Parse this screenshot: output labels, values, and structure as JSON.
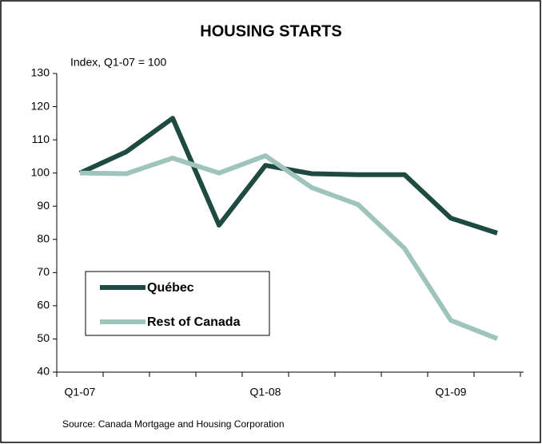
{
  "chart_data": {
    "type": "line",
    "title": "HOUSING STARTS",
    "y_label": "Index, Q1-07 = 100",
    "source": "Source: Canada Mortgage and Housing Corporation",
    "categories": [
      "Q1-07",
      null,
      null,
      null,
      "Q1-08",
      null,
      null,
      null,
      "Q1-09",
      null
    ],
    "series": [
      {
        "name": "Québec",
        "color": "#1e4a42",
        "values": [
          100,
          106.4,
          116.5,
          84.3,
          102.3,
          99.8,
          99.5,
          99.5,
          86.4,
          81.9
        ]
      },
      {
        "name": "Rest of Canada",
        "color": "#9ec4bc",
        "values": [
          100,
          99.8,
          104.5,
          100,
          105.2,
          95.6,
          90.5,
          77.3,
          55.6,
          50.1
        ]
      }
    ],
    "ylim": [
      40,
      130
    ],
    "yticks": [
      40,
      50,
      60,
      70,
      80,
      90,
      100,
      110,
      120,
      130
    ],
    "grid": false
  }
}
